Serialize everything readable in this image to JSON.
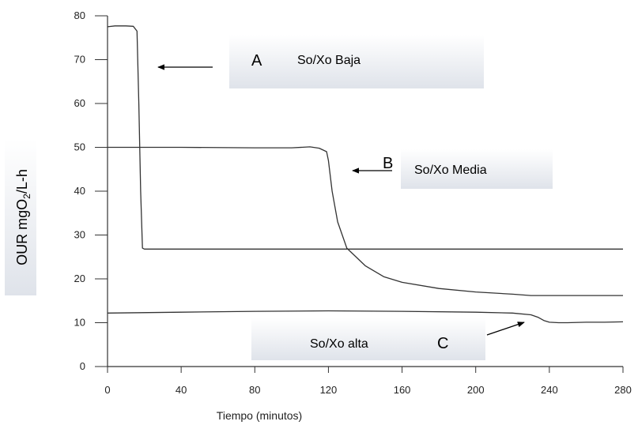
{
  "chart_data": {
    "type": "line",
    "xlabel": "Tiempo (minutos)",
    "ylabel": "OUR mgO",
    "ylabel_sub": "2",
    "ylabel_suffix": "/L-h",
    "xlim": [
      0,
      280
    ],
    "ylim": [
      0,
      80
    ],
    "xticks": [
      0,
      40,
      80,
      120,
      160,
      200,
      240,
      280
    ],
    "yticks": [
      0,
      10,
      20,
      30,
      40,
      50,
      60,
      70,
      80
    ],
    "grid": false,
    "series": [
      {
        "x": [
          0,
          4,
          10,
          14,
          16,
          17,
          18,
          19,
          20,
          280
        ],
        "y": [
          77.5,
          77.7,
          77.7,
          77.6,
          76.5,
          60,
          40,
          27,
          26.8,
          26.8
        ]
      },
      {
        "x": [
          0,
          40,
          80,
          100,
          110,
          115,
          119,
          120,
          122,
          125,
          130,
          140,
          150,
          160,
          180,
          200,
          220,
          230,
          240,
          250,
          280
        ],
        "y": [
          50,
          50,
          49.9,
          49.9,
          50.1,
          49.8,
          49,
          47,
          40,
          33,
          27,
          23,
          20.5,
          19.2,
          17.8,
          17,
          16.5,
          16.2,
          16.2,
          16.2,
          16.2
        ]
      },
      {
        "x": [
          0,
          40,
          80,
          120,
          160,
          200,
          220,
          230,
          234,
          237,
          240,
          245,
          250,
          260,
          270,
          280
        ],
        "y": [
          12.2,
          12.4,
          12.6,
          12.7,
          12.6,
          12.4,
          12.2,
          11.8,
          11.2,
          10.5,
          10.1,
          10,
          10,
          10.1,
          10.1,
          10.2
        ]
      }
    ],
    "annotations": [
      {
        "letter": "A",
        "text": "So/Xo Baja"
      },
      {
        "letter": "B",
        "text": "So/Xo  Media"
      },
      {
        "letter": "C",
        "text": "So/Xo alta"
      }
    ]
  }
}
